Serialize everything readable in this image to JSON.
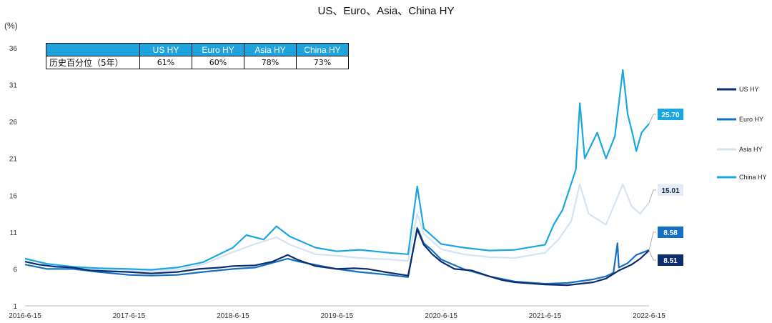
{
  "chart_data": {
    "type": "line",
    "title": "US、Euro、Asia、China HY",
    "ylabel": "(%)",
    "ylim": [
      1,
      36
    ],
    "yticks": [
      1,
      6,
      11,
      16,
      21,
      26,
      31,
      36
    ],
    "xlim": [
      "2016-06-15",
      "2022-06-15"
    ],
    "xticks": [
      "2016-6-15",
      "2017-6-15",
      "2018-6-15",
      "2019-6-15",
      "2020-6-15",
      "2021-6-15",
      "2022-6-15"
    ],
    "legend_position": "right",
    "series": [
      {
        "name": "US HY",
        "color": "#0d2c6e",
        "end_label": "8.51",
        "points": [
          [
            "2016-06-15",
            7.0
          ],
          [
            "2016-08-01",
            6.6
          ],
          [
            "2016-10-01",
            6.3
          ],
          [
            "2016-12-01",
            6.2
          ],
          [
            "2017-02-01",
            5.8
          ],
          [
            "2017-04-01",
            5.7
          ],
          [
            "2017-06-15",
            5.6
          ],
          [
            "2017-09-01",
            5.4
          ],
          [
            "2017-12-01",
            5.6
          ],
          [
            "2018-02-15",
            6.0
          ],
          [
            "2018-05-01",
            6.2
          ],
          [
            "2018-06-15",
            6.4
          ],
          [
            "2018-09-01",
            6.5
          ],
          [
            "2018-11-01",
            7.0
          ],
          [
            "2018-12-24",
            7.9
          ],
          [
            "2019-02-01",
            7.2
          ],
          [
            "2019-04-01",
            6.4
          ],
          [
            "2019-06-15",
            6.0
          ],
          [
            "2019-08-15",
            6.1
          ],
          [
            "2019-10-01",
            6.0
          ],
          [
            "2019-12-15",
            5.5
          ],
          [
            "2020-02-20",
            5.1
          ],
          [
            "2020-03-23",
            11.4
          ],
          [
            "2020-04-15",
            9.3
          ],
          [
            "2020-05-15",
            8.0
          ],
          [
            "2020-06-15",
            7.0
          ],
          [
            "2020-08-01",
            6.0
          ],
          [
            "2020-10-01",
            5.8
          ],
          [
            "2020-12-01",
            5.0
          ],
          [
            "2021-01-15",
            4.5
          ],
          [
            "2021-03-01",
            4.2
          ],
          [
            "2021-06-15",
            3.9
          ],
          [
            "2021-09-01",
            3.8
          ],
          [
            "2021-12-01",
            4.2
          ],
          [
            "2022-01-15",
            4.7
          ],
          [
            "2022-03-01",
            5.8
          ],
          [
            "2022-04-15",
            6.6
          ],
          [
            "2022-05-15",
            7.4
          ],
          [
            "2022-06-15",
            8.51
          ]
        ]
      },
      {
        "name": "Euro HY",
        "color": "#1570c2",
        "end_label": "8.58",
        "points": [
          [
            "2016-06-15",
            6.6
          ],
          [
            "2016-09-01",
            6.0
          ],
          [
            "2016-12-01",
            6.0
          ],
          [
            "2017-03-01",
            5.6
          ],
          [
            "2017-06-15",
            5.2
          ],
          [
            "2017-09-01",
            5.1
          ],
          [
            "2017-12-01",
            5.2
          ],
          [
            "2018-03-01",
            5.6
          ],
          [
            "2018-06-15",
            6.0
          ],
          [
            "2018-09-01",
            6.2
          ],
          [
            "2018-12-24",
            7.4
          ],
          [
            "2019-02-01",
            7.0
          ],
          [
            "2019-06-15",
            6.0
          ],
          [
            "2019-09-01",
            5.6
          ],
          [
            "2019-12-15",
            5.2
          ],
          [
            "2020-02-20",
            4.9
          ],
          [
            "2020-03-23",
            11.6
          ],
          [
            "2020-04-15",
            9.5
          ],
          [
            "2020-05-15",
            8.5
          ],
          [
            "2020-06-15",
            7.3
          ],
          [
            "2020-09-01",
            6.0
          ],
          [
            "2020-12-01",
            5.0
          ],
          [
            "2021-03-01",
            4.3
          ],
          [
            "2021-06-15",
            4.0
          ],
          [
            "2021-09-01",
            4.1
          ],
          [
            "2021-12-01",
            4.6
          ],
          [
            "2022-01-15",
            5.0
          ],
          [
            "2022-02-10",
            5.5
          ],
          [
            "2022-02-24",
            9.5
          ],
          [
            "2022-03-01",
            6.2
          ],
          [
            "2022-04-01",
            6.8
          ],
          [
            "2022-05-01",
            7.9
          ],
          [
            "2022-06-15",
            8.58
          ]
        ]
      },
      {
        "name": "Asia HY",
        "color": "#d6e4f2",
        "end_label": "15.01",
        "points": [
          [
            "2016-06-15",
            7.5
          ],
          [
            "2016-09-01",
            6.6
          ],
          [
            "2016-12-01",
            6.1
          ],
          [
            "2017-03-01",
            5.9
          ],
          [
            "2017-06-15",
            5.8
          ],
          [
            "2017-09-01",
            5.7
          ],
          [
            "2017-12-01",
            5.9
          ],
          [
            "2018-03-01",
            6.6
          ],
          [
            "2018-06-15",
            8.3
          ],
          [
            "2018-09-01",
            9.4
          ],
          [
            "2018-11-15",
            10.3
          ],
          [
            "2019-01-01",
            9.3
          ],
          [
            "2019-04-01",
            8.0
          ],
          [
            "2019-06-15",
            7.8
          ],
          [
            "2019-09-01",
            7.5
          ],
          [
            "2019-12-15",
            7.3
          ],
          [
            "2020-02-20",
            7.1
          ],
          [
            "2020-03-23",
            13.5
          ],
          [
            "2020-04-15",
            10.8
          ],
          [
            "2020-06-15",
            8.7
          ],
          [
            "2020-09-01",
            8.0
          ],
          [
            "2020-12-01",
            7.6
          ],
          [
            "2021-03-01",
            7.5
          ],
          [
            "2021-06-15",
            8.2
          ],
          [
            "2021-08-01",
            10.0
          ],
          [
            "2021-09-15",
            12.5
          ],
          [
            "2021-10-15",
            17.5
          ],
          [
            "2021-11-15",
            13.5
          ],
          [
            "2022-01-15",
            12.0
          ],
          [
            "2022-03-15",
            17.5
          ],
          [
            "2022-04-15",
            14.5
          ],
          [
            "2022-05-15",
            13.5
          ],
          [
            "2022-06-15",
            15.01
          ]
        ]
      },
      {
        "name": "China HY",
        "color": "#1aa7e0",
        "end_label": "25.70",
        "points": [
          [
            "2016-06-15",
            7.4
          ],
          [
            "2016-09-01",
            6.7
          ],
          [
            "2016-12-01",
            6.3
          ],
          [
            "2017-03-01",
            6.1
          ],
          [
            "2017-06-15",
            6.0
          ],
          [
            "2017-09-01",
            5.9
          ],
          [
            "2017-12-01",
            6.2
          ],
          [
            "2018-03-01",
            6.9
          ],
          [
            "2018-06-15",
            8.9
          ],
          [
            "2018-08-01",
            10.6
          ],
          [
            "2018-10-01",
            10.0
          ],
          [
            "2018-11-15",
            11.8
          ],
          [
            "2019-01-01",
            10.4
          ],
          [
            "2019-04-01",
            8.9
          ],
          [
            "2019-06-15",
            8.4
          ],
          [
            "2019-09-01",
            8.6
          ],
          [
            "2019-12-15",
            8.2
          ],
          [
            "2020-02-20",
            8.0
          ],
          [
            "2020-03-23",
            17.2
          ],
          [
            "2020-04-15",
            11.5
          ],
          [
            "2020-06-15",
            9.4
          ],
          [
            "2020-09-01",
            8.9
          ],
          [
            "2020-12-01",
            8.5
          ],
          [
            "2021-03-01",
            8.6
          ],
          [
            "2021-06-15",
            9.3
          ],
          [
            "2021-07-15",
            12.0
          ],
          [
            "2021-08-15",
            14.0
          ],
          [
            "2021-10-01",
            19.5
          ],
          [
            "2021-10-15",
            28.5
          ],
          [
            "2021-11-01",
            21.0
          ],
          [
            "2021-12-15",
            24.5
          ],
          [
            "2022-01-15",
            21.0
          ],
          [
            "2022-02-15",
            24.0
          ],
          [
            "2022-03-15",
            33.0
          ],
          [
            "2022-04-01",
            27.0
          ],
          [
            "2022-04-20",
            24.0
          ],
          [
            "2022-05-01",
            22.0
          ],
          [
            "2022-05-20",
            24.5
          ],
          [
            "2022-06-15",
            25.7
          ]
        ]
      }
    ]
  },
  "percentile_table": {
    "row_label": "历史百分位（5年）",
    "headers": [
      "US HY",
      "Euro HY",
      "Asia HY",
      "China HY"
    ],
    "values": [
      "61%",
      "60%",
      "78%",
      "73%"
    ]
  }
}
